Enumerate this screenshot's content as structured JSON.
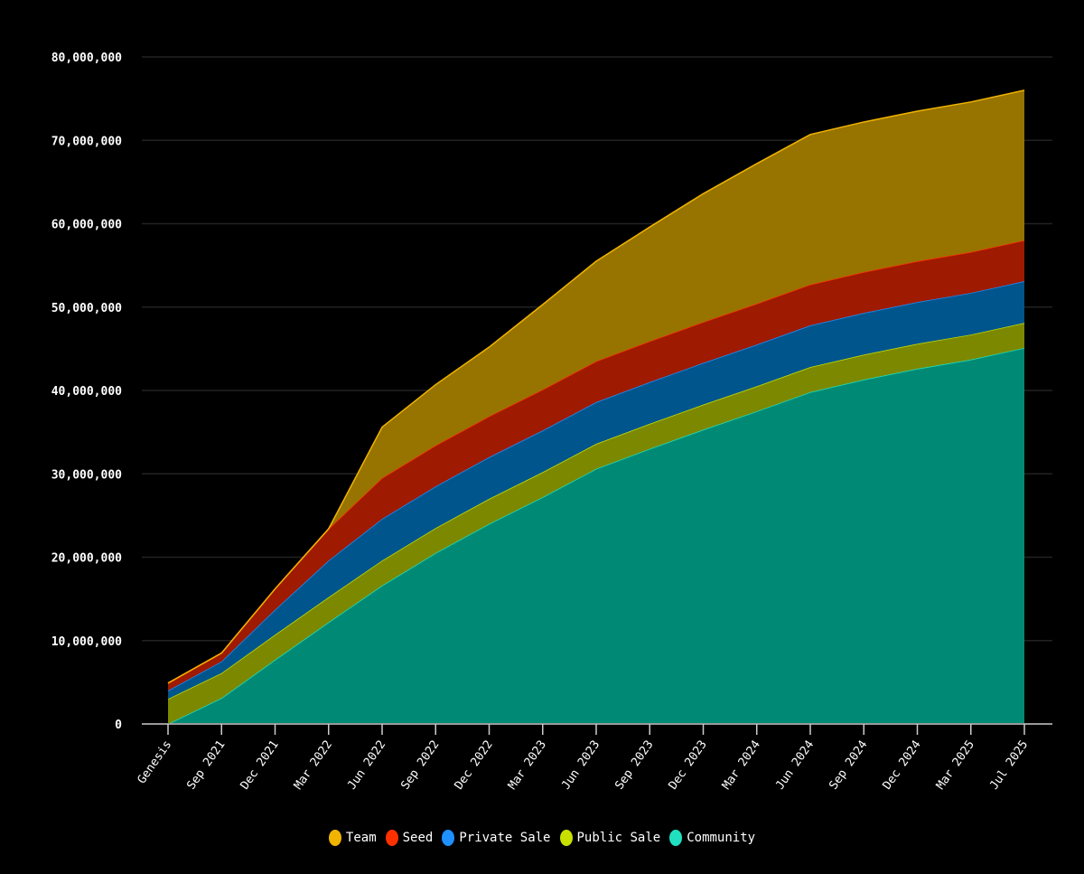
{
  "chart_data": {
    "type": "area",
    "stacked": true,
    "title": "",
    "xlabel": "",
    "ylabel": "",
    "ylim": [
      0,
      80000000
    ],
    "yticks": [
      0,
      10000000,
      20000000,
      30000000,
      40000000,
      50000000,
      60000000,
      70000000,
      80000000
    ],
    "ytick_labels": [
      "0",
      "10,000,000",
      "20,000,000",
      "30,000,000",
      "40,000,000",
      "50,000,000",
      "60,000,000",
      "70,000,000",
      "80,000,000"
    ],
    "grid": true,
    "legend_position": "bottom",
    "categories": [
      "Genesis",
      "Sep 2021",
      "Dec 2021",
      "Mar 2022",
      "Jun 2022",
      "Sep 2022",
      "Dec 2022",
      "Mar 2023",
      "Jun 2023",
      "Sep 2023",
      "Dec 2023",
      "Mar 2024",
      "Jun 2024",
      "Sep 2024",
      "Dec 2024",
      "Mar 2025",
      "Jul 2025"
    ],
    "series": [
      {
        "name": "Community",
        "color": "#20e0c0",
        "fill": "#008a76",
        "values": [
          0,
          3100000,
          7700000,
          12200000,
          16600000,
          20500000,
          24000000,
          27200000,
          30600000,
          33000000,
          35300000,
          37500000,
          39800000,
          41300000,
          42600000,
          43700000,
          45100000
        ]
      },
      {
        "name": "Public Sale",
        "color": "#c8e000",
        "fill": "#7c8800",
        "values": [
          3000000,
          3000000,
          3000000,
          3000000,
          3000000,
          3000000,
          3000000,
          3000000,
          3000000,
          3000000,
          3000000,
          3000000,
          3000000,
          3000000,
          3000000,
          3000000,
          3000000
        ]
      },
      {
        "name": "Private Sale",
        "color": "#1e90ff",
        "fill": "#00558c",
        "values": [
          1000000,
          1400000,
          3000000,
          4400000,
          5000000,
          5000000,
          5000000,
          5000000,
          5000000,
          5000000,
          5000000,
          5000000,
          5000000,
          5000000,
          5000000,
          5000000,
          5000000
        ]
      },
      {
        "name": "Seed",
        "color": "#ff3000",
        "fill": "#9e1a00",
        "values": [
          900000,
          1000000,
          2500000,
          3800000,
          4900000,
          4900000,
          4900000,
          4900000,
          4900000,
          4900000,
          4900000,
          4900000,
          4900000,
          4900000,
          4900000,
          4900000,
          4900000
        ]
      },
      {
        "name": "Team",
        "color": "#f0b400",
        "fill": "#977300",
        "values": [
          0,
          0,
          0,
          0,
          6100000,
          7300000,
          8300000,
          10200000,
          12000000,
          13700000,
          15400000,
          16800000,
          18000000,
          18000000,
          18000000,
          18000000,
          18000000
        ]
      }
    ],
    "legend_order": [
      "Team",
      "Seed",
      "Private Sale",
      "Public Sale",
      "Community"
    ]
  }
}
